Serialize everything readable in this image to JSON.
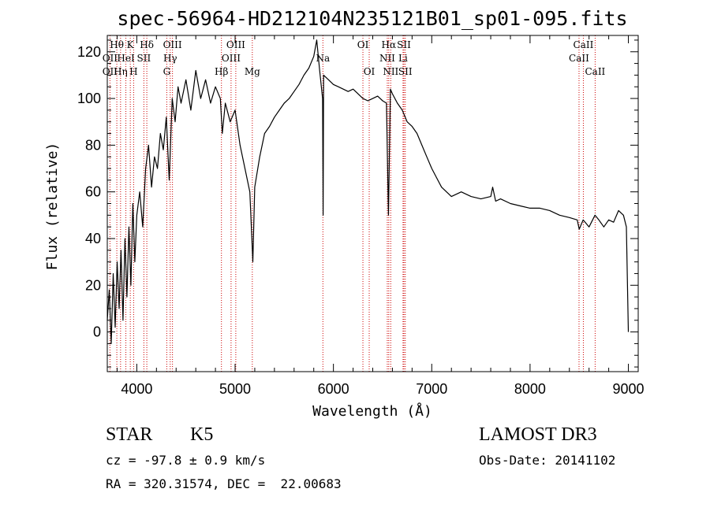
{
  "chart_data": {
    "type": "line",
    "title": "spec-56964-HD212104N235121B01_sp01-095.fits",
    "xlabel": "Wavelength (Å)",
    "ylabel": "Flux (relative)",
    "xlim": [
      3700,
      9100
    ],
    "ylim": [
      -17,
      127
    ],
    "xticks": [
      4000,
      5000,
      6000,
      7000,
      8000,
      9000
    ],
    "yticks": [
      0,
      20,
      40,
      60,
      80,
      100,
      120
    ],
    "grid": false,
    "legend": "none",
    "series": [
      {
        "color": "#000000",
        "x": [
          3700,
          3720,
          3740,
          3760,
          3780,
          3800,
          3820,
          3840,
          3860,
          3880,
          3900,
          3920,
          3940,
          3960,
          3980,
          4000,
          4030,
          4060,
          4090,
          4120,
          4150,
          4180,
          4210,
          4240,
          4270,
          4300,
          4330,
          4360,
          4390,
          4420,
          4450,
          4500,
          4550,
          4600,
          4650,
          4700,
          4750,
          4800,
          4850,
          4870,
          4900,
          4950,
          5000,
          5050,
          5100,
          5150,
          5180,
          5200,
          5250,
          5300,
          5350,
          5400,
          5450,
          5500,
          5550,
          5600,
          5650,
          5700,
          5750,
          5800,
          5830,
          5860,
          5890,
          5895,
          5900,
          5950,
          6000,
          6050,
          6100,
          6150,
          6200,
          6250,
          6300,
          6350,
          6400,
          6450,
          6500,
          6540,
          6560,
          6580,
          6600,
          6650,
          6700,
          6750,
          6800,
          6850,
          6900,
          6950,
          7000,
          7050,
          7100,
          7150,
          7200,
          7300,
          7400,
          7500,
          7600,
          7620,
          7650,
          7700,
          7800,
          7900,
          8000,
          8100,
          8200,
          8300,
          8400,
          8480,
          8500,
          8540,
          8600,
          8660,
          8700,
          8750,
          8800,
          8850,
          8900,
          8950,
          8980,
          9000
        ],
        "values": [
          5,
          18,
          -5,
          25,
          2,
          30,
          10,
          35,
          5,
          40,
          15,
          45,
          20,
          55,
          30,
          50,
          60,
          45,
          70,
          80,
          62,
          75,
          70,
          85,
          78,
          92,
          65,
          100,
          90,
          105,
          98,
          108,
          95,
          112,
          100,
          108,
          98,
          105,
          100,
          85,
          98,
          90,
          95,
          80,
          70,
          60,
          30,
          62,
          75,
          85,
          88,
          92,
          95,
          98,
          100,
          103,
          106,
          110,
          113,
          118,
          125,
          112,
          100,
          50,
          110,
          108,
          106,
          105,
          104,
          103,
          104,
          102,
          100,
          99,
          100,
          101,
          99,
          98,
          50,
          104,
          102,
          98,
          95,
          90,
          88,
          85,
          80,
          75,
          70,
          66,
          62,
          60,
          58,
          60,
          58,
          57,
          58,
          62,
          56,
          57,
          55,
          54,
          53,
          53,
          52,
          50,
          49,
          48,
          44,
          48,
          45,
          50,
          48,
          45,
          48,
          47,
          52,
          50,
          45,
          0
        ]
      }
    ],
    "spectral_lines": [
      {
        "label": "Hθ",
        "x": 3797,
        "row": 0
      },
      {
        "label": "K",
        "x": 3934,
        "row": 0
      },
      {
        "label": "Hδ",
        "x": 4102,
        "row": 0
      },
      {
        "label": "OIII",
        "x": 4363,
        "row": 0
      },
      {
        "label": "OIII",
        "x": 5007,
        "row": 0
      },
      {
        "label": "OI",
        "x": 6300,
        "row": 0
      },
      {
        "label": "Hα",
        "x": 6563,
        "row": 0
      },
      {
        "label": "SII",
        "x": 6717,
        "row": 0
      },
      {
        "label": "CaII",
        "x": 8542,
        "row": 0
      },
      {
        "label": "OII",
        "x": 3727,
        "row": 1
      },
      {
        "label": "HeI",
        "x": 3889,
        "row": 1
      },
      {
        "label": "SII",
        "x": 4072,
        "row": 1
      },
      {
        "label": "Hγ",
        "x": 4340,
        "row": 1
      },
      {
        "label": "OIII",
        "x": 4959,
        "row": 1
      },
      {
        "label": "Na",
        "x": 5893,
        "row": 1
      },
      {
        "label": "NII",
        "x": 6548,
        "row": 1
      },
      {
        "label": "Li",
        "x": 6708,
        "row": 1
      },
      {
        "label": "CaII",
        "x": 8498,
        "row": 1
      },
      {
        "label": "OII",
        "x": 3727,
        "row": 2
      },
      {
        "label": "Hη",
        "x": 3835,
        "row": 2
      },
      {
        "label": "H",
        "x": 3968,
        "row": 2
      },
      {
        "label": "G",
        "x": 4305,
        "row": 2
      },
      {
        "label": "Hβ",
        "x": 4861,
        "row": 2
      },
      {
        "label": "Mg",
        "x": 5175,
        "row": 2
      },
      {
        "label": "OI",
        "x": 6364,
        "row": 2
      },
      {
        "label": "NII",
        "x": 6583,
        "row": 2
      },
      {
        "label": "SII",
        "x": 6731,
        "row": 2
      },
      {
        "label": "CaII",
        "x": 8662,
        "row": 2
      }
    ]
  },
  "info": {
    "object_class": "STAR",
    "subclass": "K5",
    "survey": "LAMOST DR3",
    "cz": "cz = -97.8 ± 0.9 km/s",
    "obs_date": "Obs-Date: 20141102",
    "coords": "RA = 320.31574, DEC =  22.00683"
  }
}
